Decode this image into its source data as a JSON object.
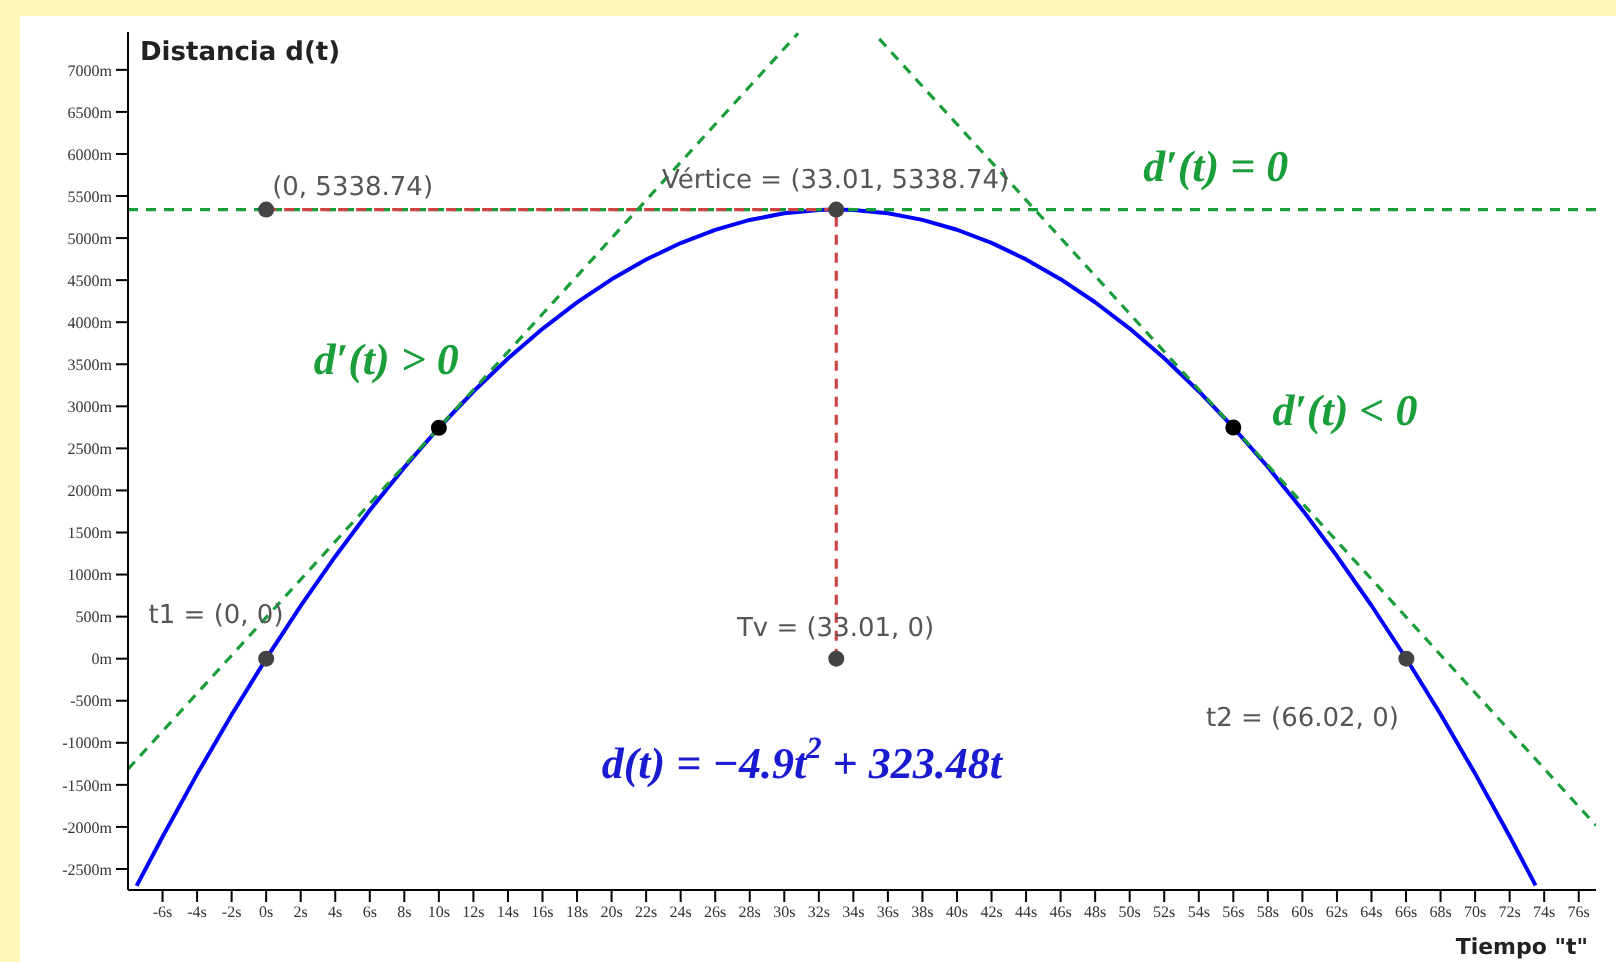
{
  "chart_data": {
    "type": "line",
    "xlabel": "Tiempo \"t\"",
    "ylabel": "Distancia d(t)",
    "xlim": [
      -8,
      77
    ],
    "ylim": [
      -2750,
      7450
    ],
    "xticks": [
      {
        "value": -6,
        "label": "-6s"
      },
      {
        "value": -4,
        "label": "-4s"
      },
      {
        "value": -2,
        "label": "-2s"
      },
      {
        "value": 0,
        "label": "0s"
      },
      {
        "value": 2,
        "label": "2s"
      },
      {
        "value": 4,
        "label": "4s"
      },
      {
        "value": 6,
        "label": "6s"
      },
      {
        "value": 8,
        "label": "8s"
      },
      {
        "value": 10,
        "label": "10s"
      },
      {
        "value": 12,
        "label": "12s"
      },
      {
        "value": 14,
        "label": "14s"
      },
      {
        "value": 16,
        "label": "16s"
      },
      {
        "value": 18,
        "label": "18s"
      },
      {
        "value": 20,
        "label": "20s"
      },
      {
        "value": 22,
        "label": "22s"
      },
      {
        "value": 24,
        "label": "24s"
      },
      {
        "value": 26,
        "label": "26s"
      },
      {
        "value": 28,
        "label": "28s"
      },
      {
        "value": 30,
        "label": "30s"
      },
      {
        "value": 32,
        "label": "32s"
      },
      {
        "value": 34,
        "label": "34s"
      },
      {
        "value": 36,
        "label": "36s"
      },
      {
        "value": 38,
        "label": "38s"
      },
      {
        "value": 40,
        "label": "40s"
      },
      {
        "value": 42,
        "label": "42s"
      },
      {
        "value": 44,
        "label": "44s"
      },
      {
        "value": 46,
        "label": "46s"
      },
      {
        "value": 48,
        "label": "48s"
      },
      {
        "value": 50,
        "label": "50s"
      },
      {
        "value": 52,
        "label": "52s"
      },
      {
        "value": 54,
        "label": "54s"
      },
      {
        "value": 56,
        "label": "56s"
      },
      {
        "value": 58,
        "label": "58s"
      },
      {
        "value": 60,
        "label": "60s"
      },
      {
        "value": 62,
        "label": "62s"
      },
      {
        "value": 64,
        "label": "64s"
      },
      {
        "value": 66,
        "label": "66s"
      },
      {
        "value": 68,
        "label": "68s"
      },
      {
        "value": 70,
        "label": "70s"
      },
      {
        "value": 72,
        "label": "72s"
      },
      {
        "value": 74,
        "label": "74s"
      },
      {
        "value": 76,
        "label": "76s"
      }
    ],
    "yticks": [
      {
        "value": -2500,
        "label": "-2500m"
      },
      {
        "value": -2000,
        "label": "-2000m"
      },
      {
        "value": -1500,
        "label": "-1500m"
      },
      {
        "value": -1000,
        "label": "-1000m"
      },
      {
        "value": -500,
        "label": "-500m"
      },
      {
        "value": 0,
        "label": "0m"
      },
      {
        "value": 500,
        "label": "500m"
      },
      {
        "value": 1000,
        "label": "1000m"
      },
      {
        "value": 1500,
        "label": "1500m"
      },
      {
        "value": 2000,
        "label": "2000m"
      },
      {
        "value": 2500,
        "label": "2500m"
      },
      {
        "value": 3000,
        "label": "3000m"
      },
      {
        "value": 3500,
        "label": "3500m"
      },
      {
        "value": 4000,
        "label": "4000m"
      },
      {
        "value": 4500,
        "label": "4500m"
      },
      {
        "value": 5000,
        "label": "5000m"
      },
      {
        "value": 5500,
        "label": "5500m"
      },
      {
        "value": 6000,
        "label": "6000m"
      },
      {
        "value": 6500,
        "label": "6500m"
      },
      {
        "value": 7000,
        "label": "7000m"
      }
    ],
    "series": [
      {
        "type": "line",
        "color": "#0000ff",
        "line_style": "solid",
        "x": [
          -7.5,
          -6,
          -4,
          -2,
          0,
          2,
          4,
          6,
          8,
          10,
          12,
          14,
          16,
          18,
          20,
          22,
          24,
          26,
          28,
          30,
          32,
          33.01,
          34,
          36,
          38,
          40,
          42,
          44,
          46,
          48,
          50,
          52,
          54,
          56,
          58,
          60,
          62,
          64,
          66,
          66.02,
          68,
          70,
          72,
          73.5
        ],
        "values": [
          -2701.7,
          -2117.3,
          -1372.3,
          -666.6,
          0,
          627.4,
          1215.5,
          1764.5,
          2274.2,
          2744.8,
          3176.2,
          3568.3,
          3921.3,
          4235.0,
          4509.6,
          4745.0,
          4941.1,
          5098.1,
          5215.8,
          5294.4,
          5333.8,
          5338.74,
          5333.9,
          5294.9,
          5216.6,
          5099.2,
          4942.6,
          4746.7,
          4511.7,
          4237.4,
          3924.0,
          3571.4,
          3179.5,
          2748.5,
          2278.2,
          1768.8,
          1220.2,
          632.3,
          5.3,
          0,
          -661.0,
          -1366.4,
          -2111.0,
          -2695.2
        ]
      },
      {
        "type": "line",
        "color": "#1a9e3a",
        "line_style": "dashed",
        "x": [
          -8,
          30.8
        ],
        "values": [
          -1313.8,
          7434.8
        ]
      },
      {
        "type": "line",
        "color": "#1a9e3a",
        "line_style": "dashed",
        "x": [
          35.5,
          77
        ],
        "values": [
          7367.5,
          -1983.2
        ]
      },
      {
        "type": "line",
        "color": "#1a9e3a",
        "line_style": "dashed",
        "x": [
          -8,
          77
        ],
        "values": [
          5338.74,
          5338.74
        ]
      },
      {
        "type": "line",
        "color": "#cc4444",
        "line_style": "dashed",
        "x": [
          0,
          33.01
        ],
        "values": [
          5338.74,
          5338.74
        ]
      },
      {
        "type": "line",
        "color": "#cc4444",
        "line_style": "dashed",
        "x": [
          33.01,
          33.01
        ],
        "values": [
          0,
          5338.74
        ]
      },
      {
        "type": "scatter",
        "color": "#444444",
        "marker": "circle",
        "x": [
          0,
          0,
          33.01,
          33.01,
          66.02
        ],
        "values": [
          0,
          5338.74,
          5338.74,
          0,
          0
        ]
      },
      {
        "type": "scatter",
        "color": "#000000",
        "marker": "circle",
        "x": [
          10,
          56
        ],
        "values": [
          2744.8,
          2748.48
        ]
      }
    ],
    "annotations": [
      "(0, 5338.74)",
      "Vértice = (33.01, 5338.74)",
      "t1 = (0, 0)",
      "Tv = (33.01, 0)",
      "t2 = (66.02, 0)",
      "d′(t) = 0",
      "d′(t) > 0",
      "d′(t) < 0",
      "d(t) = −4.9t$^{2}$ + 323.48t"
    ]
  }
}
